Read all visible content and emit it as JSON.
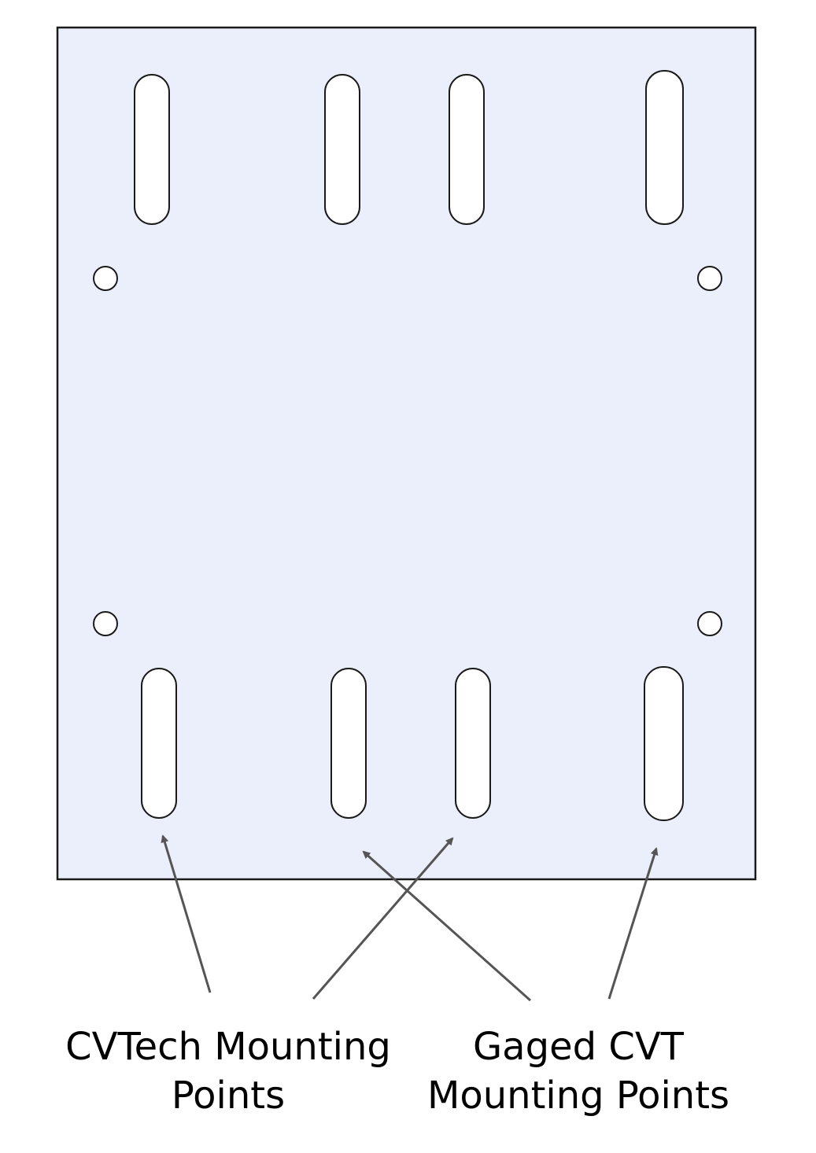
{
  "plate": {
    "fill": "#ebeefb",
    "stroke": "#1a1a1a"
  },
  "labels": {
    "cvtech": {
      "line1": "CVTech Mounting",
      "line2": "Points"
    },
    "gaged": {
      "line1": "Gaged CVT",
      "line2": "Mounting Points"
    }
  },
  "arrow_color": "#555555"
}
